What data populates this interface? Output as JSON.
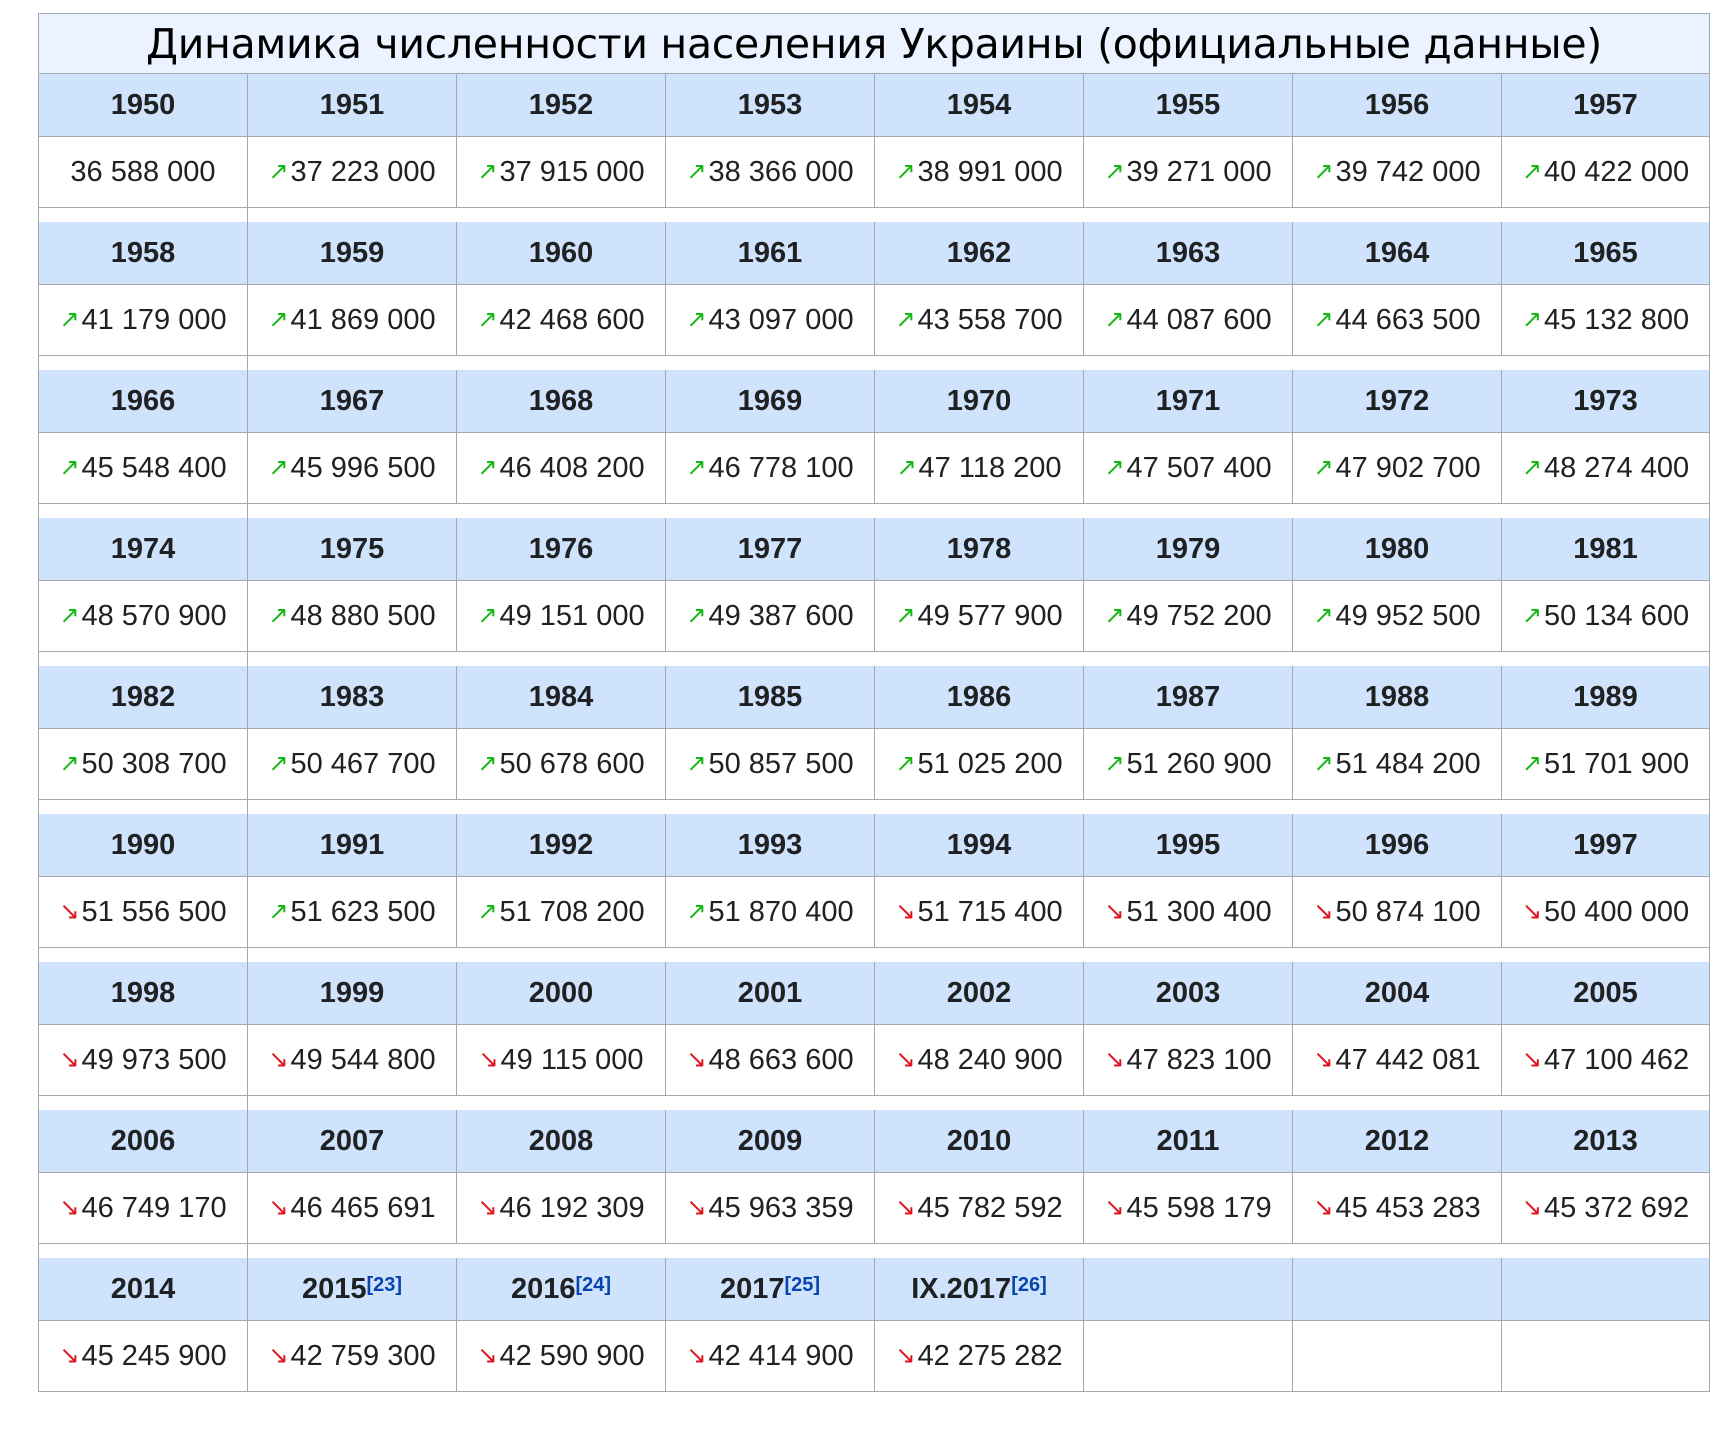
{
  "chart_data": {
    "type": "table",
    "title": "Динамика численности населения Украины (официальные данные)",
    "up_color": "#14b814",
    "down_color": "#e0141e",
    "header_color": "#cfe3fd",
    "rows": [
      [
        {
          "year": "1950",
          "value": "36 588 000",
          "trend": ""
        },
        {
          "year": "1951",
          "value": "37 223 000",
          "trend": "up"
        },
        {
          "year": "1952",
          "value": "37 915 000",
          "trend": "up"
        },
        {
          "year": "1953",
          "value": "38 366 000",
          "trend": "up"
        },
        {
          "year": "1954",
          "value": "38 991 000",
          "trend": "up"
        },
        {
          "year": "1955",
          "value": "39 271 000",
          "trend": "up"
        },
        {
          "year": "1956",
          "value": "39 742 000",
          "trend": "up"
        },
        {
          "year": "1957",
          "value": "40 422 000",
          "trend": "up"
        }
      ],
      [
        {
          "year": "1958",
          "value": "41 179 000",
          "trend": "up"
        },
        {
          "year": "1959",
          "value": "41 869 000",
          "trend": "up"
        },
        {
          "year": "1960",
          "value": "42 468 600",
          "trend": "up"
        },
        {
          "year": "1961",
          "value": "43 097 000",
          "trend": "up"
        },
        {
          "year": "1962",
          "value": "43 558 700",
          "trend": "up"
        },
        {
          "year": "1963",
          "value": "44 087 600",
          "trend": "up"
        },
        {
          "year": "1964",
          "value": "44 663 500",
          "trend": "up"
        },
        {
          "year": "1965",
          "value": "45 132 800",
          "trend": "up"
        }
      ],
      [
        {
          "year": "1966",
          "value": "45 548 400",
          "trend": "up"
        },
        {
          "year": "1967",
          "value": "45 996 500",
          "trend": "up"
        },
        {
          "year": "1968",
          "value": "46 408 200",
          "trend": "up"
        },
        {
          "year": "1969",
          "value": "46 778 100",
          "trend": "up"
        },
        {
          "year": "1970",
          "value": "47 118 200",
          "trend": "up"
        },
        {
          "year": "1971",
          "value": "47 507 400",
          "trend": "up"
        },
        {
          "year": "1972",
          "value": "47 902 700",
          "trend": "up"
        },
        {
          "year": "1973",
          "value": "48 274 400",
          "trend": "up"
        }
      ],
      [
        {
          "year": "1974",
          "value": "48 570 900",
          "trend": "up"
        },
        {
          "year": "1975",
          "value": "48 880 500",
          "trend": "up"
        },
        {
          "year": "1976",
          "value": "49 151 000",
          "trend": "up"
        },
        {
          "year": "1977",
          "value": "49 387 600",
          "trend": "up"
        },
        {
          "year": "1978",
          "value": "49 577 900",
          "trend": "up"
        },
        {
          "year": "1979",
          "value": "49 752 200",
          "trend": "up"
        },
        {
          "year": "1980",
          "value": "49 952 500",
          "trend": "up"
        },
        {
          "year": "1981",
          "value": "50 134 600",
          "trend": "up"
        }
      ],
      [
        {
          "year": "1982",
          "value": "50 308 700",
          "trend": "up"
        },
        {
          "year": "1983",
          "value": "50 467 700",
          "trend": "up"
        },
        {
          "year": "1984",
          "value": "50 678 600",
          "trend": "up"
        },
        {
          "year": "1985",
          "value": "50 857 500",
          "trend": "up"
        },
        {
          "year": "1986",
          "value": "51 025 200",
          "trend": "up"
        },
        {
          "year": "1987",
          "value": "51 260 900",
          "trend": "up"
        },
        {
          "year": "1988",
          "value": "51 484 200",
          "trend": "up"
        },
        {
          "year": "1989",
          "value": "51 701 900",
          "trend": "up"
        }
      ],
      [
        {
          "year": "1990",
          "value": "51 556 500",
          "trend": "down"
        },
        {
          "year": "1991",
          "value": "51 623 500",
          "trend": "up"
        },
        {
          "year": "1992",
          "value": "51 708 200",
          "trend": "up"
        },
        {
          "year": "1993",
          "value": "51 870 400",
          "trend": "up"
        },
        {
          "year": "1994",
          "value": "51 715 400",
          "trend": "down"
        },
        {
          "year": "1995",
          "value": "51 300 400",
          "trend": "down"
        },
        {
          "year": "1996",
          "value": "50 874 100",
          "trend": "down"
        },
        {
          "year": "1997",
          "value": "50 400 000",
          "trend": "down"
        }
      ],
      [
        {
          "year": "1998",
          "value": "49 973 500",
          "trend": "down"
        },
        {
          "year": "1999",
          "value": "49 544 800",
          "trend": "down"
        },
        {
          "year": "2000",
          "value": "49 115 000",
          "trend": "down"
        },
        {
          "year": "2001",
          "value": "48 663 600",
          "trend": "down"
        },
        {
          "year": "2002",
          "value": "48 240 900",
          "trend": "down"
        },
        {
          "year": "2003",
          "value": "47 823 100",
          "trend": "down"
        },
        {
          "year": "2004",
          "value": "47 442 081",
          "trend": "down"
        },
        {
          "year": "2005",
          "value": "47 100 462",
          "trend": "down"
        }
      ],
      [
        {
          "year": "2006",
          "value": "46 749 170",
          "trend": "down"
        },
        {
          "year": "2007",
          "value": "46 465 691",
          "trend": "down"
        },
        {
          "year": "2008",
          "value": "46 192 309",
          "trend": "down"
        },
        {
          "year": "2009",
          "value": "45 963 359",
          "trend": "down"
        },
        {
          "year": "2010",
          "value": "45 782 592",
          "trend": "down"
        },
        {
          "year": "2011",
          "value": "45 598 179",
          "trend": "down"
        },
        {
          "year": "2012",
          "value": "45 453 283",
          "trend": "down"
        },
        {
          "year": "2013",
          "value": "45 372 692",
          "trend": "down"
        }
      ],
      [
        {
          "year": "2014",
          "value": "45 245 900",
          "trend": "down"
        },
        {
          "year": "2015",
          "ref": "[23]",
          "value": "42 759 300",
          "trend": "down"
        },
        {
          "year": "2016",
          "ref": "[24]",
          "value": "42 590 900",
          "trend": "down"
        },
        {
          "year": "2017",
          "ref": "[25]",
          "value": "42 414 900",
          "trend": "down"
        },
        {
          "year": "IX.2017",
          "ref": "[26]",
          "value": "42 275 282",
          "trend": "down"
        },
        {
          "year": "",
          "value": "",
          "trend": ""
        },
        {
          "year": "",
          "value": "",
          "trend": ""
        },
        {
          "year": "",
          "value": "",
          "trend": ""
        }
      ]
    ]
  }
}
